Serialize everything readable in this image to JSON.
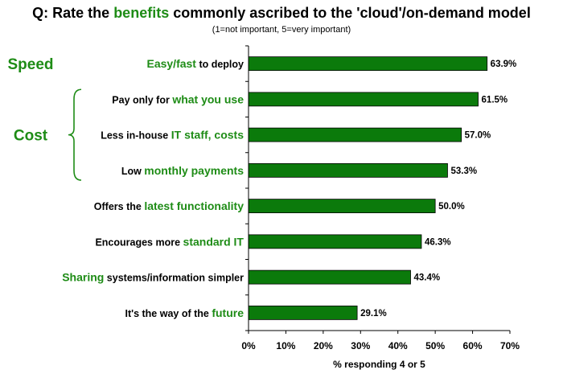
{
  "header": {
    "title_prefix": "Q: Rate the ",
    "title_highlight": "benefits",
    "title_suffix": " commonly ascribed to the 'cloud'/on-demand model",
    "subtitle": "(1=not important, 5=very important)"
  },
  "colors": {
    "bar": "#0b7a0b",
    "highlight_text": "#1e8c16",
    "bracket": "#1e8c16",
    "axis": "#000000"
  },
  "groups": [
    {
      "label": "Speed",
      "first": 0,
      "last": 0,
      "bracket": false
    },
    {
      "label": "Cost",
      "first": 1,
      "last": 3,
      "bracket": true
    }
  ],
  "chart_data": {
    "type": "bar",
    "orientation": "horizontal",
    "title": "Q: Rate the benefits commonly ascribed to the 'cloud'/on-demand model",
    "subtitle": "(1=not important, 5=very important)",
    "xlabel": "% responding 4 or 5",
    "ylabel": "",
    "xlim": [
      0,
      70
    ],
    "ticks": [
      0,
      10,
      20,
      30,
      40,
      50,
      60,
      70
    ],
    "tick_suffix": "%",
    "grid": false,
    "categories": [
      "Easy/fast to deploy",
      "Pay only for what you use",
      "Less in-house IT staff, costs",
      "Low monthly payments",
      "Offers the latest functionality",
      "Encourages more standard IT",
      "Sharing systems/information simpler",
      "It's the way of the future"
    ],
    "category_parts": [
      [
        {
          "t": "Easy/fast",
          "hl": true
        },
        {
          "t": " to deploy",
          "hl": false
        }
      ],
      [
        {
          "t": "Pay only for ",
          "hl": false
        },
        {
          "t": "what you use",
          "hl": true
        }
      ],
      [
        {
          "t": "Less in-house ",
          "hl": false
        },
        {
          "t": "IT staff, costs",
          "hl": true
        }
      ],
      [
        {
          "t": "Low ",
          "hl": false
        },
        {
          "t": "monthly payments",
          "hl": true
        }
      ],
      [
        {
          "t": "Offers the ",
          "hl": false
        },
        {
          "t": "latest functionality",
          "hl": true
        }
      ],
      [
        {
          "t": "Encourages more ",
          "hl": false
        },
        {
          "t": "standard IT",
          "hl": true
        }
      ],
      [
        {
          "t": "Sharing",
          "hl": true
        },
        {
          "t": " systems/information simpler",
          "hl": false
        }
      ],
      [
        {
          "t": "It's the way of the ",
          "hl": false
        },
        {
          "t": "future",
          "hl": true
        }
      ]
    ],
    "values": [
      63.9,
      61.5,
      57.0,
      53.3,
      50.0,
      46.3,
      43.4,
      29.1
    ],
    "value_labels": [
      "63.9%",
      "61.5%",
      "57.0%",
      "53.3%",
      "50.0%",
      "46.3%",
      "43.4%",
      "29.1%"
    ]
  }
}
